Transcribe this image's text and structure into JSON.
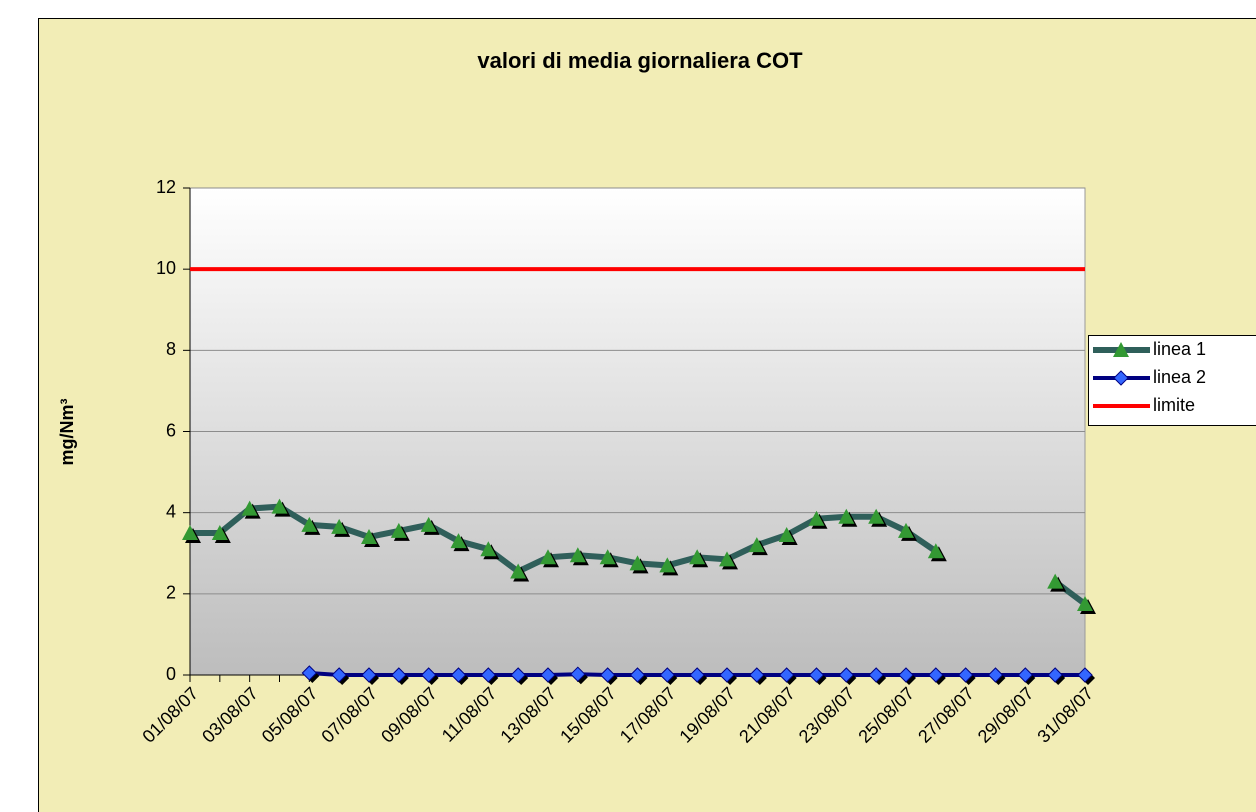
{
  "chart_data": {
    "type": "line",
    "title": "valori di media giornaliera  COT",
    "y_label": "mg/Nm³",
    "categories": [
      "01/08/07",
      null,
      "03/08/07",
      null,
      "05/08/07",
      null,
      "07/08/07",
      null,
      "09/08/07",
      null,
      "11/08/07",
      null,
      "13/08/07",
      null,
      "15/08/07",
      null,
      "17/08/07",
      null,
      "19/08/07",
      null,
      "21/08/07",
      null,
      "23/08/07",
      null,
      "25/08/07",
      null,
      "27/08/07",
      null,
      "29/08/07",
      null,
      "31/08/07"
    ],
    "series": [
      {
        "name": "linea 1",
        "color": "#2f5f5a",
        "marker_color": "#339933",
        "marker": "triangle",
        "values": [
          3.5,
          3.5,
          4.1,
          4.15,
          3.7,
          3.65,
          3.4,
          3.55,
          3.7,
          3.3,
          3.1,
          2.55,
          2.9,
          2.95,
          2.9,
          2.75,
          2.7,
          2.9,
          2.85,
          3.2,
          3.45,
          3.85,
          3.9,
          3.9,
          3.55,
          3.05,
          null,
          null,
          null,
          2.3,
          1.75
        ]
      },
      {
        "name": "linea 2",
        "color": "#000080",
        "marker_color": "#3366ff",
        "marker": "diamond",
        "values": [
          null,
          null,
          null,
          null,
          0.05,
          0,
          0,
          0,
          0,
          0,
          0,
          0,
          0,
          0.02,
          0,
          0,
          0,
          0,
          0,
          0,
          0,
          0,
          0,
          0,
          0,
          0,
          0,
          0,
          0,
          0,
          0
        ]
      },
      {
        "name": "limite",
        "color": "#ff0000",
        "marker": "none",
        "values": [
          10,
          10,
          10,
          10,
          10,
          10,
          10,
          10,
          10,
          10,
          10,
          10,
          10,
          10,
          10,
          10,
          10,
          10,
          10,
          10,
          10,
          10,
          10,
          10,
          10,
          10,
          10,
          10,
          10,
          10,
          10
        ]
      }
    ],
    "ylim": [
      0,
      12
    ],
    "yticks": [
      0,
      2,
      4,
      6,
      8,
      10,
      12
    ],
    "grid": true,
    "legend": "right"
  }
}
